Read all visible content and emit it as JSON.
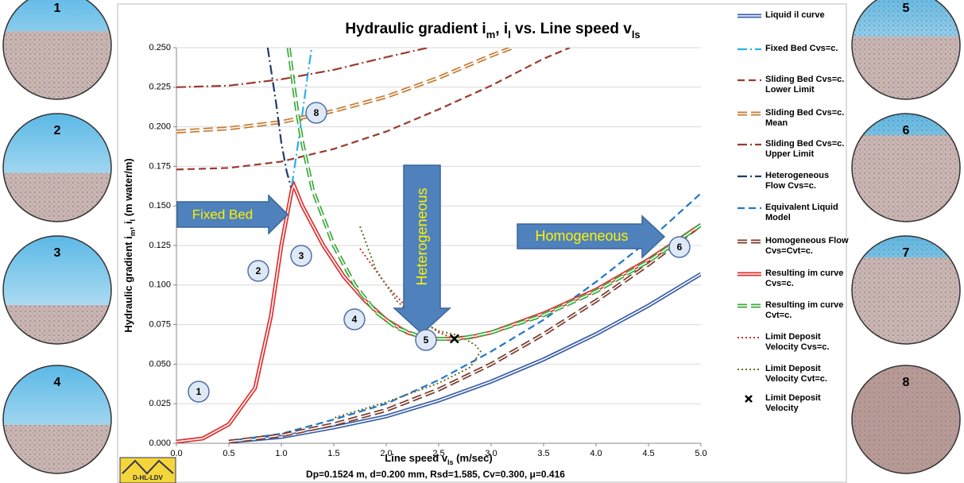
{
  "chart_data": {
    "type": "line",
    "title_parts": [
      "Hydraulic gradient i",
      "m",
      ", i",
      "l",
      " vs. Line speed v",
      "ls"
    ],
    "ylabel_parts": [
      "Hydraulic gradient i",
      "m",
      ", i",
      "l",
      " (m water/m)"
    ],
    "xlabel_parts": [
      "Line speed v",
      "ls",
      " (m/sec)"
    ],
    "footer": "Dp=0.1524 m, d=0.200 mm, Rsd=1.585, Cv=0.300, μ=0.416",
    "logo_text": "D-HL-LDV",
    "xlim": [
      0,
      5
    ],
    "ylim": [
      0,
      0.25
    ],
    "xticks": [
      {
        "value": 0,
        "label": "0.0"
      },
      {
        "value": 0.5,
        "label": "0.5"
      },
      {
        "value": 1,
        "label": "1.0"
      },
      {
        "value": 1.5,
        "label": "1.5"
      },
      {
        "value": 2,
        "label": "2.0"
      },
      {
        "value": 2.5,
        "label": "2.5"
      },
      {
        "value": 3,
        "label": "3.0"
      },
      {
        "value": 3.5,
        "label": "3.5"
      },
      {
        "value": 4,
        "label": "4.0"
      },
      {
        "value": 4.5,
        "label": "4.5"
      },
      {
        "value": 5,
        "label": "5.0"
      }
    ],
    "yticks": [
      {
        "value": 0,
        "label": "0.000"
      },
      {
        "value": 0.025,
        "label": "0.025"
      },
      {
        "value": 0.05,
        "label": "0.050"
      },
      {
        "value": 0.075,
        "label": "0.075"
      },
      {
        "value": 0.1,
        "label": "0.100"
      },
      {
        "value": 0.125,
        "label": "0.125"
      },
      {
        "value": 0.15,
        "label": "0.150"
      },
      {
        "value": 0.175,
        "label": "0.175"
      },
      {
        "value": 0.2,
        "label": "0.200"
      },
      {
        "value": 0.225,
        "label": "0.225"
      },
      {
        "value": 0.25,
        "label": "0.250"
      }
    ],
    "grid": true,
    "series": [
      {
        "name": "Liquid il curve",
        "color": "#3a5fa8",
        "line_style": "double",
        "x": [
          0.5,
          1,
          1.5,
          2,
          2.5,
          3,
          3.5,
          4,
          4.5,
          5
        ],
        "values": [
          0.001,
          0.004,
          0.01,
          0.017,
          0.027,
          0.039,
          0.053,
          0.069,
          0.087,
          0.107
        ]
      },
      {
        "name": "Fixed Bed Cvs=c.",
        "color": "#2ab0e8",
        "line_style": "dashdot",
        "x": [
          1.1,
          1.15,
          1.2,
          1.25,
          1.29
        ],
        "values": [
          0.163,
          0.185,
          0.208,
          0.232,
          0.25
        ]
      },
      {
        "name": "Sliding Bed Cvs=c. Lower Limit",
        "color": "#9b3a2e",
        "line_style": "dashed",
        "x": [
          0,
          0.5,
          1,
          1.5,
          2,
          2.5,
          3,
          3.5,
          3.75
        ],
        "values": [
          0.173,
          0.174,
          0.178,
          0.186,
          0.197,
          0.211,
          0.226,
          0.243,
          0.25
        ]
      },
      {
        "name": "Sliding Bed Cvs=c. Mean",
        "color": "#c87a30",
        "line_style": "double-dashed",
        "x": [
          0,
          0.5,
          1,
          1.5,
          2,
          2.5,
          3,
          3.2
        ],
        "values": [
          0.197,
          0.199,
          0.203,
          0.21,
          0.219,
          0.231,
          0.245,
          0.25
        ]
      },
      {
        "name": "Sliding Bed Cvs=c. Upper Limit",
        "color": "#9b3a2e",
        "line_style": "dashdot",
        "x": [
          0,
          0.5,
          1,
          1.5,
          2,
          2.4
        ],
        "values": [
          0.225,
          0.226,
          0.23,
          0.236,
          0.244,
          0.25
        ]
      },
      {
        "name": "Heterogeneous Flow Cvs=c.",
        "color": "#1f3b6e",
        "line_style": "dashdot",
        "x": [
          0.87,
          0.95,
          1,
          1.05,
          1.1
        ],
        "values": [
          0.25,
          0.215,
          0.19,
          0.172,
          0.16
        ]
      },
      {
        "name": "Equivalent Liquid Model",
        "color": "#1f78c8",
        "line_style": "dashed",
        "x": [
          0.5,
          1,
          1.5,
          2,
          2.5,
          3,
          3.5,
          4,
          4.5,
          5
        ],
        "values": [
          0.0015,
          0.006,
          0.015,
          0.025,
          0.04,
          0.058,
          0.078,
          0.102,
          0.128,
          0.158
        ]
      },
      {
        "name": "Homogeneous Flow Cvs=Cvt=c.",
        "color": "#7a3a2a",
        "line_style": "double-dashed",
        "x": [
          0.5,
          1,
          1.5,
          2,
          2.5,
          3,
          3.5,
          4,
          4.5,
          5
        ],
        "values": [
          0.001,
          0.005,
          0.012,
          0.021,
          0.034,
          0.05,
          0.069,
          0.09,
          0.113,
          0.138
        ]
      },
      {
        "name": "Resulting im curve Cvs=c.",
        "color": "#e03030",
        "line_style": "double",
        "x": [
          0,
          0.25,
          0.5,
          0.75,
          0.9,
          1,
          1.1,
          1.12,
          1.2,
          1.4,
          1.6,
          1.8,
          2,
          2.2,
          2.4,
          2.6,
          2.8,
          3,
          3.5,
          4,
          4.5,
          5
        ],
        "values": [
          0.001,
          0.003,
          0.012,
          0.035,
          0.08,
          0.125,
          0.16,
          0.163,
          0.15,
          0.125,
          0.105,
          0.09,
          0.078,
          0.07,
          0.066,
          0.066,
          0.067,
          0.07,
          0.082,
          0.097,
          0.116,
          0.138
        ]
      },
      {
        "name": "Resulting im curve Cvt=c.",
        "color": "#3aaa3a",
        "line_style": "double-dashed",
        "x": [
          1.07,
          1.15,
          1.2,
          1.3,
          1.5,
          1.7,
          1.9,
          2.1,
          2.3,
          2.5,
          2.7,
          3,
          3.5,
          4,
          4.5,
          5
        ],
        "values": [
          0.25,
          0.21,
          0.19,
          0.16,
          0.125,
          0.1,
          0.083,
          0.073,
          0.068,
          0.066,
          0.066,
          0.07,
          0.081,
          0.096,
          0.115,
          0.138
        ]
      },
      {
        "name": "Limit Deposit Velocity Cvs=c.",
        "color": "#c0302a",
        "line_style": "dotted",
        "x": [
          1.75,
          2,
          2.25,
          2.5,
          2.65
        ],
        "values": [
          0.123,
          0.1,
          0.082,
          0.07,
          0.066
        ]
      },
      {
        "name": "Limit Deposit Velocity Cvt=c.",
        "color": "#6b6b2a",
        "line_style": "dotted",
        "x": [
          1.75,
          1.9,
          2.1,
          2.3,
          2.5,
          2.7,
          2.85,
          2.9,
          2.8,
          2.5,
          2,
          1.5
        ],
        "values": [
          0.137,
          0.11,
          0.09,
          0.078,
          0.071,
          0.068,
          0.062,
          0.058,
          0.048,
          0.038,
          0.026,
          0.016
        ]
      },
      {
        "name": "Limit Deposit Velocity",
        "color": "#000000",
        "marker": "x",
        "x": [
          2.65
        ],
        "values": [
          0.066
        ]
      }
    ],
    "point_labels": [
      "1",
      "2",
      "3",
      "4",
      "5",
      "6",
      "8"
    ],
    "callouts": [
      "Fixed Bed",
      "Heterogeneous",
      "Homogeneous"
    ],
    "pipe_labels": [
      "1",
      "2",
      "3",
      "4",
      "5",
      "6",
      "7",
      "8"
    ]
  }
}
